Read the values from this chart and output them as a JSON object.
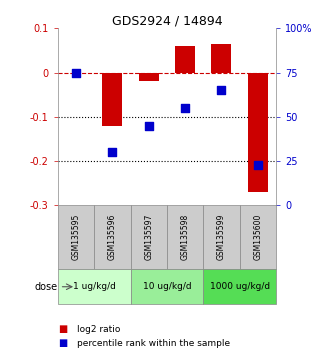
{
  "title": "GDS2924 / 14894",
  "samples": [
    "GSM135595",
    "GSM135596",
    "GSM135597",
    "GSM135598",
    "GSM135599",
    "GSM135600"
  ],
  "log2_ratio": [
    0.0,
    -0.12,
    -0.02,
    0.06,
    0.065,
    -0.27
  ],
  "percentile_rank": [
    75,
    30,
    45,
    55,
    65,
    23
  ],
  "bar_color": "#cc0000",
  "dot_color": "#0000cc",
  "ylim_left": [
    -0.3,
    0.1
  ],
  "ylim_right": [
    0,
    100
  ],
  "yticks_left": [
    -0.3,
    -0.2,
    -0.1,
    0.0,
    0.1
  ],
  "yticks_right": [
    0,
    25,
    50,
    75,
    100
  ],
  "hline_y_left": [
    0.0,
    -0.1,
    -0.2
  ],
  "hline_styles": [
    "dashed",
    "dotted",
    "dotted"
  ],
  "hline_colors": [
    "#cc0000",
    "#000000",
    "#000000"
  ],
  "dose_groups": [
    {
      "label": "1 ug/kg/d",
      "start": 0,
      "end": 2,
      "color": "#ccffcc"
    },
    {
      "label": "10 ug/kg/d",
      "start": 2,
      "end": 4,
      "color": "#99ee99"
    },
    {
      "label": "1000 ug/kg/d",
      "start": 4,
      "end": 6,
      "color": "#55dd55"
    }
  ],
  "dose_label": "dose",
  "legend_red": "log2 ratio",
  "legend_blue": "percentile rank within the sample",
  "bar_width": 0.55,
  "dot_size": 30,
  "background_color": "#ffffff",
  "plot_bg": "#ffffff",
  "sample_box_color": "#cccccc",
  "tick_label_color_left": "#cc0000",
  "tick_label_color_right": "#0000cc"
}
